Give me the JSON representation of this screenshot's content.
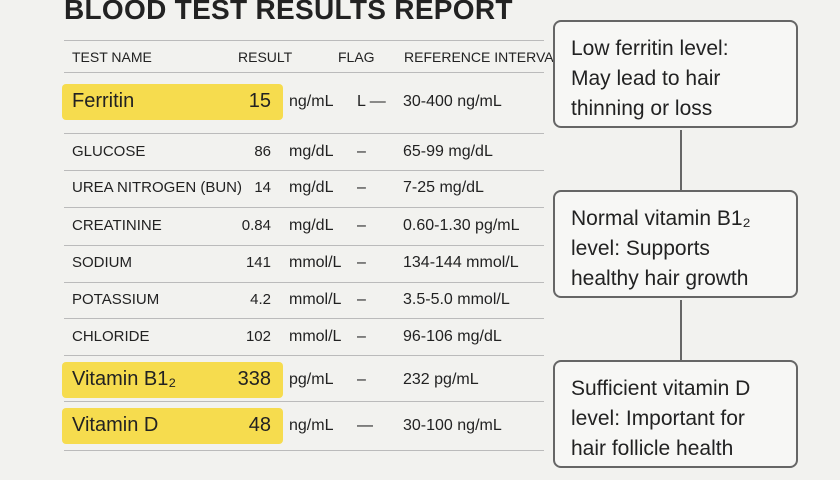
{
  "header": {
    "title": "BLOOD TEST RESULTS REPORT"
  },
  "table": {
    "columns": [
      "TEST NAME",
      "RESULT",
      "FLAG",
      "REFERENCE INTERVAL"
    ],
    "rows": [
      {
        "name": "Ferritin",
        "result": "15",
        "unit": "ng/mL",
        "flag": "L —",
        "reference": "30-400 ng/mL",
        "highlight": true
      },
      {
        "name": "GLUCOSE",
        "result": "86",
        "unit": "mg/dL",
        "flag": "–",
        "reference": "65-99 mg/dL",
        "highlight": false
      },
      {
        "name": "UREA NITROGEN (BUN)",
        "result": "14",
        "unit": "mg/dL",
        "flag": "–",
        "reference": "7-25 mg/dL",
        "highlight": false
      },
      {
        "name": "CREATININE",
        "result": "0.84",
        "unit": "mg/dL",
        "flag": "–",
        "reference": "0.60-1.30 pg/mL",
        "highlight": false
      },
      {
        "name": "SODIUM",
        "result": "141",
        "unit": "mmol/L",
        "flag": "–",
        "reference": "134-144 mmol/L",
        "highlight": false
      },
      {
        "name": "POTASSIUM",
        "result": "4.2",
        "unit": "mmol/L",
        "flag": "–",
        "reference": "3.5-5.0 mmol/L",
        "highlight": false
      },
      {
        "name": "CHLORIDE",
        "result": "102",
        "unit": "mmol/L",
        "flag": "–",
        "reference": "96-106 mg/dL",
        "highlight": false
      },
      {
        "name": "Vitamin B1₂",
        "result": "338",
        "unit": "pg/mL",
        "flag": "–",
        "reference": "232 pg/mL",
        "highlight": true
      },
      {
        "name": "Vitamin D",
        "result": "48",
        "unit": "ng/mL",
        "flag": "—",
        "reference": "30-100 ng/mL",
        "highlight": true
      }
    ]
  },
  "callouts": [
    {
      "lines": [
        "Low ferritin level:",
        "May lead to hair",
        "thinning or loss"
      ]
    },
    {
      "lines": [
        "Normal vitamin B1₂",
        "level: Supports",
        "healthy hair growth"
      ]
    },
    {
      "lines": [
        "Sufficient vitamin D",
        "level: Important for",
        "hair follicle health"
      ]
    }
  ]
}
